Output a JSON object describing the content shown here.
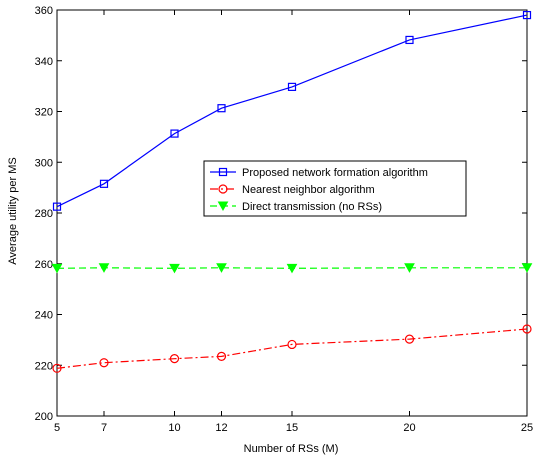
{
  "chart_data": {
    "type": "line",
    "xlabel": "Number of RSs (M)",
    "ylabel": "Average utility per MS",
    "x": [
      5,
      7,
      10,
      12,
      15,
      20,
      25
    ],
    "xlim": [
      5,
      25
    ],
    "ylim": [
      200,
      360
    ],
    "xticks": [
      5,
      7,
      10,
      12,
      15,
      20,
      25
    ],
    "yticks": [
      200,
      220,
      240,
      260,
      280,
      300,
      320,
      340,
      360
    ],
    "grid": false,
    "legend_position": "center-right",
    "series": [
      {
        "name": "Proposed network formation algorithm",
        "values": [
          282.5,
          291.5,
          311.3,
          321.3,
          329.7,
          348.2,
          358.0
        ],
        "color": "#0000ff",
        "line_style": "solid",
        "marker": "square"
      },
      {
        "name": "Nearest neighbor algorithm",
        "values": [
          218.8,
          221.0,
          222.6,
          223.5,
          228.2,
          230.3,
          234.3
        ],
        "color": "#ff0000",
        "line_style": "dash-dot",
        "marker": "circle"
      },
      {
        "name": "Direct transmission (no RSs)",
        "values": [
          258.2,
          258.4,
          258.2,
          258.4,
          258.2,
          258.4,
          258.4
        ],
        "color": "#00ff00",
        "line_style": "dashed",
        "marker": "triangle-down"
      }
    ]
  }
}
